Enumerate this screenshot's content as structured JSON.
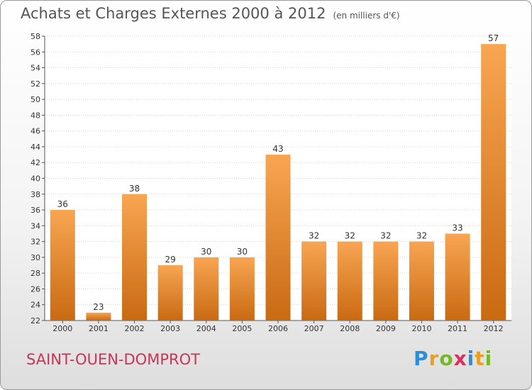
{
  "chart_data": {
    "type": "bar",
    "title": "Achats et Charges Externes 2000 à 2012",
    "subtitle": "(en milliers d'€)",
    "categories": [
      "2000",
      "2001",
      "2002",
      "2003",
      "2004",
      "2005",
      "2006",
      "2007",
      "2008",
      "2009",
      "2010",
      "2011",
      "2012"
    ],
    "values": [
      36,
      23,
      38,
      29,
      30,
      30,
      43,
      32,
      32,
      32,
      32,
      33,
      57
    ],
    "ylim": [
      22,
      58
    ],
    "yticks": [
      22,
      24,
      26,
      28,
      30,
      32,
      34,
      36,
      38,
      40,
      42,
      44,
      46,
      48,
      50,
      52,
      54,
      56,
      58
    ],
    "grid": true,
    "bar_color_top": "#f8a552",
    "bar_color_bottom": "#c96a12"
  },
  "footer": {
    "town": "SAINT-OUEN-DOMPROT",
    "logo_letters": [
      "P",
      "r",
      "o",
      "x",
      "i",
      "t",
      "i"
    ],
    "logo_colors": [
      "#2a8fd8",
      "#e8a020",
      "#78b828",
      "#d83060",
      "#2a8fd8",
      "#e8a020",
      "#78b828"
    ]
  }
}
